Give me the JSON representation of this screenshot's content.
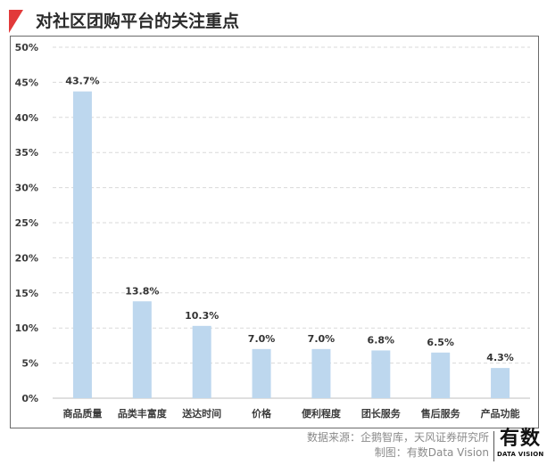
{
  "title": "对社区团购平台的关注重点",
  "colors": {
    "accent": "#e23a3a",
    "bar": "#bdd7ee",
    "grid": "#d9d9d9"
  },
  "chart_data": {
    "type": "bar",
    "title": "对社区团购平台的关注重点",
    "xlabel": "",
    "ylabel": "",
    "categories": [
      "商品质量",
      "品类丰富度",
      "送达时间",
      "价格",
      "便利程度",
      "团长服务",
      "售后服务",
      "产品功能"
    ],
    "values": [
      43.7,
      13.8,
      10.3,
      7.0,
      7.0,
      6.8,
      6.5,
      4.3
    ],
    "value_labels": [
      "43.7%",
      "13.8%",
      "10.3%",
      "7.0%",
      "7.0%",
      "6.8%",
      "6.5%",
      "4.3%"
    ],
    "ylim": [
      0,
      50
    ],
    "yticks": [
      0,
      5,
      10,
      15,
      20,
      25,
      30,
      35,
      40,
      45,
      50
    ],
    "ytick_labels": [
      "0%",
      "5%",
      "10%",
      "15%",
      "20%",
      "25%",
      "30%",
      "35%",
      "40%",
      "45%",
      "50%"
    ],
    "grid": "horizontal dashed",
    "legend": "none"
  },
  "footer": {
    "source": "数据来源：企鹅智库，天风证券研究所",
    "credit": "制图：有数Data Vision"
  },
  "logo": {
    "main": "有数",
    "sub": "DATA VISION"
  }
}
